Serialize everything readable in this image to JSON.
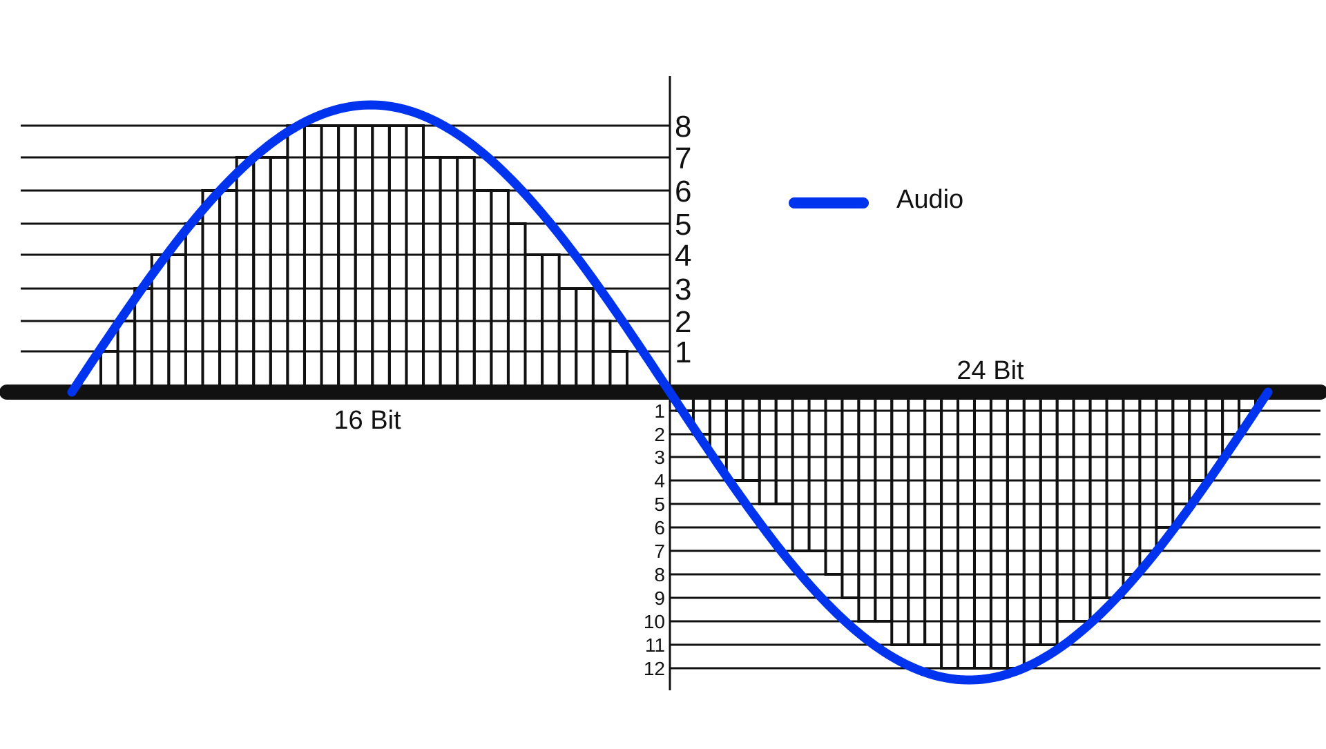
{
  "upper": {
    "caption": "16 Bit",
    "levels": [
      "1",
      "2",
      "3",
      "4",
      "5",
      "6",
      "7",
      "8"
    ],
    "steps": [
      1,
      2,
      3,
      4,
      4,
      5,
      6,
      6,
      7,
      7,
      7,
      8,
      8,
      8,
      8,
      8,
      8,
      8,
      8,
      7,
      7,
      7,
      6,
      6,
      5,
      4,
      4,
      3,
      3,
      2,
      1
    ]
  },
  "lower": {
    "caption": "24 Bit",
    "levels": [
      "1",
      "2",
      "3",
      "4",
      "5",
      "6",
      "7",
      "8",
      "9",
      "10",
      "11",
      "12"
    ],
    "steps": [
      1,
      2,
      3,
      4,
      4,
      5,
      5,
      7,
      7,
      8,
      9,
      10,
      10,
      11,
      11,
      11,
      12,
      12,
      12,
      12,
      12,
      11,
      11,
      10,
      10,
      9,
      9,
      8,
      7,
      6,
      5,
      4,
      3,
      2,
      1
    ]
  },
  "legend": {
    "label": "Audio"
  },
  "colors": {
    "wave": "#0033ee",
    "ink": "#111111",
    "background": "#ffffff"
  }
}
